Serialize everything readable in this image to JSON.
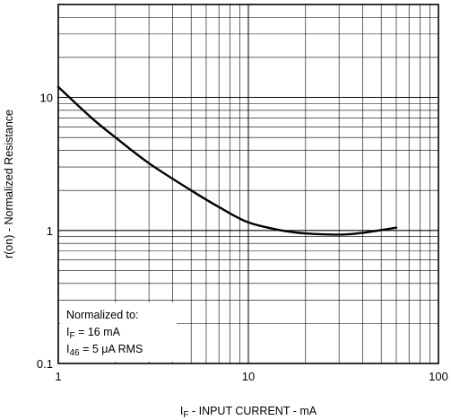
{
  "chart_data": {
    "type": "line",
    "xscale": "log",
    "yscale": "log",
    "xlim": [
      1,
      100
    ],
    "ylim": [
      0.1,
      50
    ],
    "x_ticks": [
      1,
      10,
      100
    ],
    "x_tick_labels": [
      "1",
      "10",
      "100"
    ],
    "y_ticks": [
      0.1,
      1,
      10
    ],
    "y_tick_labels": [
      "0.1",
      "1",
      "10"
    ],
    "grid": true,
    "xlabel": "I F - INPUT CURRENT - mA",
    "xlabel_main": "I",
    "xlabel_sub": "F",
    "xlabel_rest": " - INPUT CURRENT - mA",
    "ylabel": "r(on) - Normalized Resistance",
    "annotation": {
      "line1": "Normalized to:",
      "line2_main": "I",
      "line2_sub": "F",
      "line2_rest": " = 16 mA",
      "line3_main": "I",
      "line3_sub": "46",
      "line3_rest": " = 5 μA RMS"
    },
    "series": [
      {
        "x": [
          1,
          1.5,
          2,
          3,
          5,
          7,
          10,
          15,
          20,
          30,
          40,
          60
        ],
        "y": [
          12,
          7.0,
          5.0,
          3.2,
          2.0,
          1.5,
          1.15,
          1.0,
          0.95,
          0.93,
          0.96,
          1.05
        ],
        "color": "#000000"
      }
    ]
  }
}
